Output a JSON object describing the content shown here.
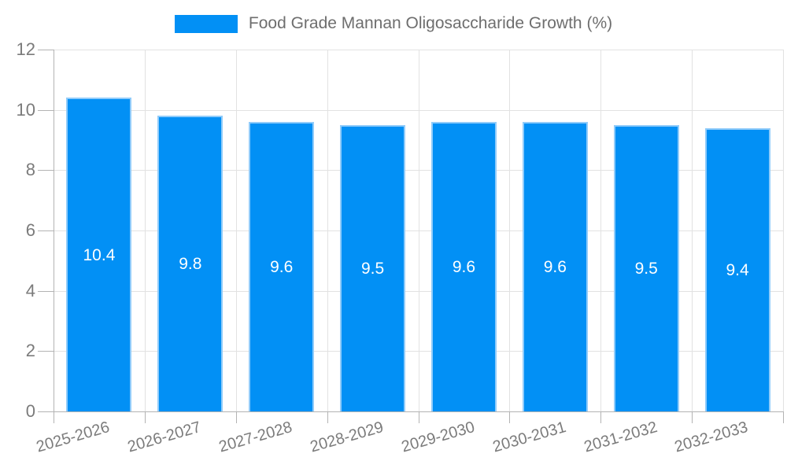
{
  "legend": {
    "label": "Food Grade Mannan Oligosaccharide Growth (%)"
  },
  "colors": {
    "bar": "#0290f5",
    "bar_edge": "rgba(170, 215, 250, 0.85)",
    "grid": "#e2e2e2",
    "axis": "#b3b3b3",
    "tick_text": "#7b7b7b",
    "legend_text": "#6e6e6e",
    "value_text": "#ffffff"
  },
  "chart_data": {
    "type": "bar",
    "title": "Food Grade Mannan Oligosaccharide Growth (%)",
    "categories": [
      "2025-2026",
      "2026-2027",
      "2027-2028",
      "2028-2029",
      "2029-2030",
      "2030-2031",
      "2031-2032",
      "2032-2033"
    ],
    "values": [
      10.4,
      9.8,
      9.6,
      9.5,
      9.6,
      9.6,
      9.5,
      9.4
    ],
    "value_labels": [
      "10.4",
      "9.8",
      "9.6",
      "9.5",
      "9.6",
      "9.6",
      "9.5",
      "9.4"
    ],
    "xlabel": "",
    "ylabel": "",
    "ylim": [
      0,
      12
    ],
    "yticks": [
      0,
      2,
      4,
      6,
      8,
      10,
      12
    ],
    "grid": true,
    "legend_position": "top",
    "value_labels_position": "center-inside"
  }
}
